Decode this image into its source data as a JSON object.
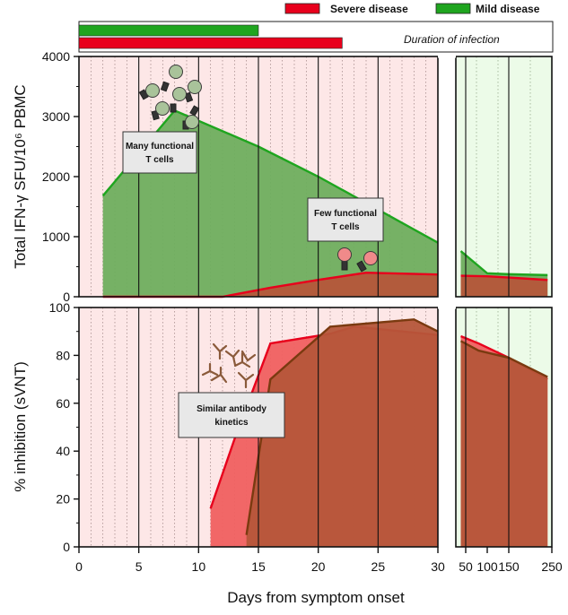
{
  "legend": {
    "severe_label": "Severe disease",
    "mild_label": "Mild disease",
    "severe_color": "#e8001c",
    "mild_color": "#1fa51f"
  },
  "duration": {
    "label": "Duration of infection",
    "mild_days": 15,
    "severe_days": 22
  },
  "colors": {
    "severe_fill": "#b5563a",
    "mild_fill": "#6fae5e",
    "severe_zone": "#fde7e7",
    "mild_zone": "#ecfbe8"
  },
  "notes": {
    "many_tcells": [
      "Many functional",
      "T cells"
    ],
    "few_tcells": [
      "Few functional",
      "T cells"
    ],
    "antibody": [
      "Similar antibody",
      "kinetics"
    ]
  },
  "icons": [
    "t-cell-cluster-icon",
    "t-cell-pair-icon",
    "antibody-cluster-icon"
  ],
  "xlabel": "Days from symptom onset",
  "chart_data": [
    {
      "type": "area",
      "ylabel": "Total IFN-γ SFU/10⁶ PBMC",
      "ylim": [
        0,
        4000
      ],
      "yticks": [
        0,
        1000,
        2000,
        3000,
        4000
      ],
      "x_segments": [
        {
          "range": [
            0,
            30
          ],
          "ticks": [
            0,
            5,
            10,
            15,
            20,
            25,
            30
          ],
          "minor_grid": "every day"
        },
        {
          "range": [
            40,
            250
          ],
          "ticks": [
            50,
            100,
            150,
            250
          ]
        }
      ],
      "series": [
        {
          "name": "Mild disease",
          "x": [
            2,
            8,
            15,
            20,
            25,
            30,
            45,
            100,
            150,
            240
          ],
          "y": [
            1680,
            3100,
            2500,
            2000,
            1450,
            900,
            760,
            390,
            375,
            360
          ]
        },
        {
          "name": "Severe disease",
          "x": [
            2,
            10,
            12,
            16,
            20,
            24,
            30,
            45,
            100,
            150,
            240
          ],
          "y": [
            0,
            0,
            0,
            150,
            280,
            400,
            370,
            350,
            340,
            320,
            280
          ]
        }
      ]
    },
    {
      "type": "area",
      "ylabel": "% inhibition (sVNT)",
      "ylim": [
        0,
        100
      ],
      "yticks": [
        0,
        20,
        40,
        60,
        80,
        100
      ],
      "x_segments": [
        {
          "range": [
            0,
            30
          ],
          "ticks": [
            0,
            5,
            10,
            15,
            20,
            25,
            30
          ],
          "minor_grid": "every day"
        },
        {
          "range": [
            40,
            250
          ],
          "ticks": [
            50,
            100,
            150,
            250
          ]
        }
      ],
      "series": [
        {
          "name": "Severe disease",
          "x": [
            11,
            13,
            16,
            21,
            23,
            30,
            45,
            80,
            150,
            240
          ],
          "y": [
            16,
            45,
            85,
            89,
            92,
            88.5,
            88,
            85,
            79,
            70
          ]
        },
        {
          "name": "Mild disease",
          "x": [
            14,
            16,
            21,
            28,
            30,
            45,
            80,
            150,
            240
          ],
          "y": [
            5,
            70,
            92,
            95,
            90,
            86,
            82,
            79,
            71
          ]
        }
      ]
    }
  ],
  "axis_tick_labels": [
    "0",
    "5",
    "10",
    "15",
    "20",
    "25",
    "30",
    "50",
    "100",
    "150",
    "250"
  ]
}
